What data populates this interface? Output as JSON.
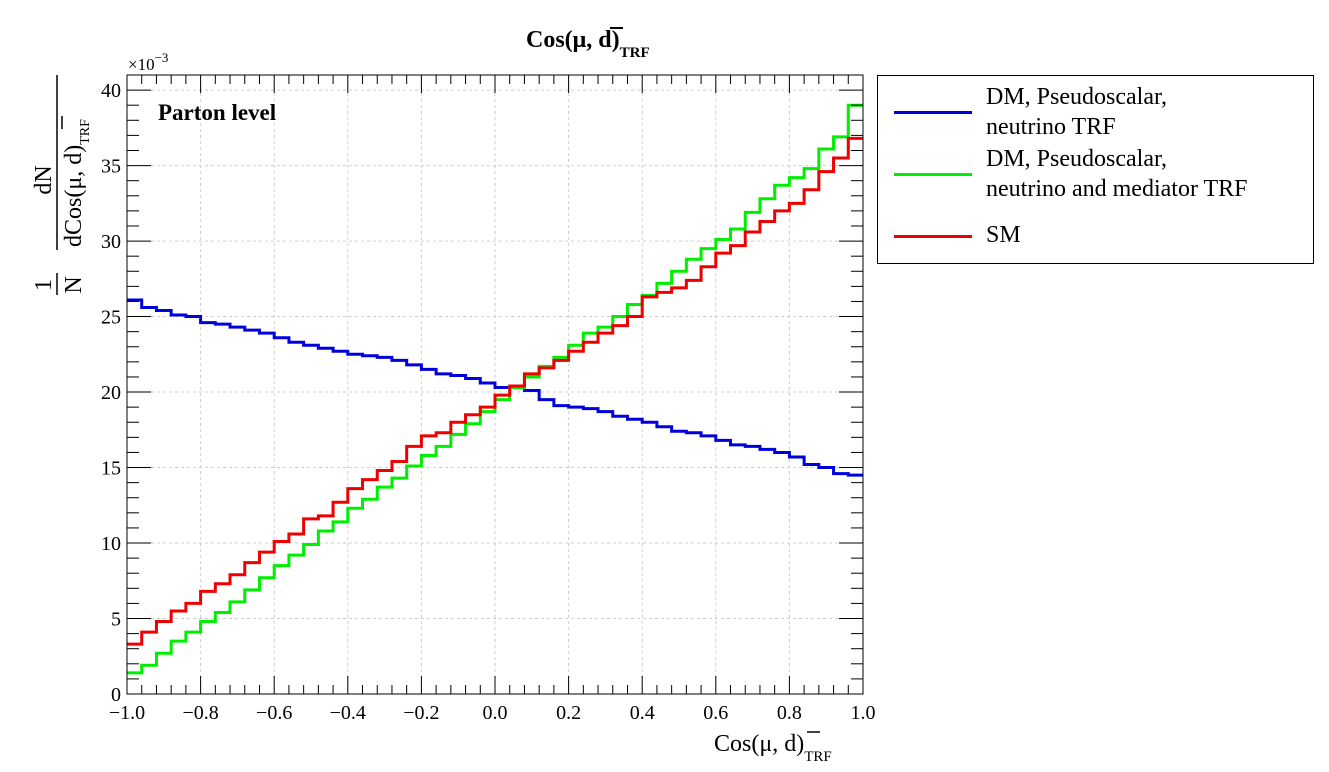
{
  "chart_data": {
    "type": "line",
    "drawstyle": "steps",
    "title": "Cos(μ, d̄)_TRF",
    "title_parts": {
      "main": "Cos(μ, ",
      "dbar": "d",
      "close": ")",
      "sub": "TRF"
    },
    "xlabel_parts": {
      "main": "Cos(μ,  ",
      "dbar": "d",
      "close": ")",
      "sub": "TRF"
    },
    "ylabel_parts": {
      "frac1_num": "1",
      "frac1_den": "N",
      "frac2_num": "dN",
      "frac2_den_main": "dCos(μ,  ",
      "frac2_den_dbar": "d",
      "frac2_den_close": ")",
      "frac2_den_sub": "TRF"
    },
    "y_multiplier": "×10",
    "y_multiplier_exp": "−3",
    "annotation": "Parton level",
    "xlim": [
      -1.0,
      1.0
    ],
    "ylim": [
      0,
      41
    ],
    "x_ticks": [
      -1.0,
      -0.8,
      -0.6,
      -0.4,
      -0.2,
      0.0,
      0.2,
      0.4,
      0.6,
      0.8,
      1.0
    ],
    "x_tick_labels": [
      "−1.0",
      "−0.8",
      "−0.6",
      "−0.4",
      "−0.2",
      "0.0",
      "0.2",
      "0.4",
      "0.6",
      "0.8",
      "1.0"
    ],
    "y_ticks": [
      0,
      5,
      10,
      15,
      20,
      25,
      30,
      35,
      40
    ],
    "y_tick_labels": [
      "0",
      "5",
      "10",
      "15",
      "20",
      "25",
      "30",
      "35",
      "40"
    ],
    "bins": 50,
    "series": [
      {
        "name": "DM, Pseudoscalar,\nneutrino TRF",
        "color": "#0000dd",
        "values": [
          26.1,
          25.6,
          25.4,
          25.1,
          25.0,
          24.6,
          24.5,
          24.3,
          24.1,
          23.9,
          23.6,
          23.3,
          23.1,
          22.9,
          22.7,
          22.5,
          22.4,
          22.3,
          22.1,
          21.8,
          21.5,
          21.2,
          21.1,
          20.9,
          20.6,
          20.3,
          20.3,
          20.1,
          19.5,
          19.1,
          19.0,
          18.9,
          18.7,
          18.4,
          18.2,
          18.0,
          17.7,
          17.4,
          17.3,
          17.1,
          16.8,
          16.5,
          16.4,
          16.2,
          16.0,
          15.7,
          15.2,
          15.0,
          14.6,
          14.5
        ]
      },
      {
        "name": "DM, Pseudoscalar,\nneutrino and mediator TRF",
        "color": "#00ee00",
        "values": [
          1.4,
          1.9,
          2.7,
          3.5,
          4.1,
          4.8,
          5.4,
          6.1,
          6.9,
          7.7,
          8.5,
          9.2,
          9.9,
          10.8,
          11.4,
          12.3,
          12.9,
          13.7,
          14.3,
          15.1,
          15.8,
          16.4,
          17.2,
          17.9,
          18.7,
          19.5,
          20.3,
          21.0,
          21.7,
          22.3,
          23.1,
          23.9,
          24.3,
          25.0,
          25.8,
          26.4,
          27.2,
          28.0,
          28.8,
          29.5,
          30.1,
          30.8,
          31.9,
          32.8,
          33.7,
          34.2,
          34.8,
          36.1,
          36.9,
          39.0
        ]
      },
      {
        "name": "SM",
        "color": "#ee0000",
        "values": [
          3.3,
          4.1,
          4.8,
          5.5,
          6.0,
          6.8,
          7.3,
          7.9,
          8.7,
          9.4,
          10.1,
          10.6,
          11.6,
          11.8,
          12.7,
          13.6,
          14.2,
          14.8,
          15.4,
          16.4,
          17.1,
          17.3,
          18.0,
          18.5,
          19.0,
          19.8,
          20.4,
          21.2,
          21.6,
          22.1,
          22.7,
          23.3,
          23.9,
          24.4,
          25.0,
          26.3,
          26.6,
          26.9,
          27.4,
          28.3,
          29.2,
          29.7,
          30.6,
          31.3,
          32.0,
          32.5,
          33.4,
          34.6,
          35.5,
          36.8
        ]
      }
    ]
  }
}
